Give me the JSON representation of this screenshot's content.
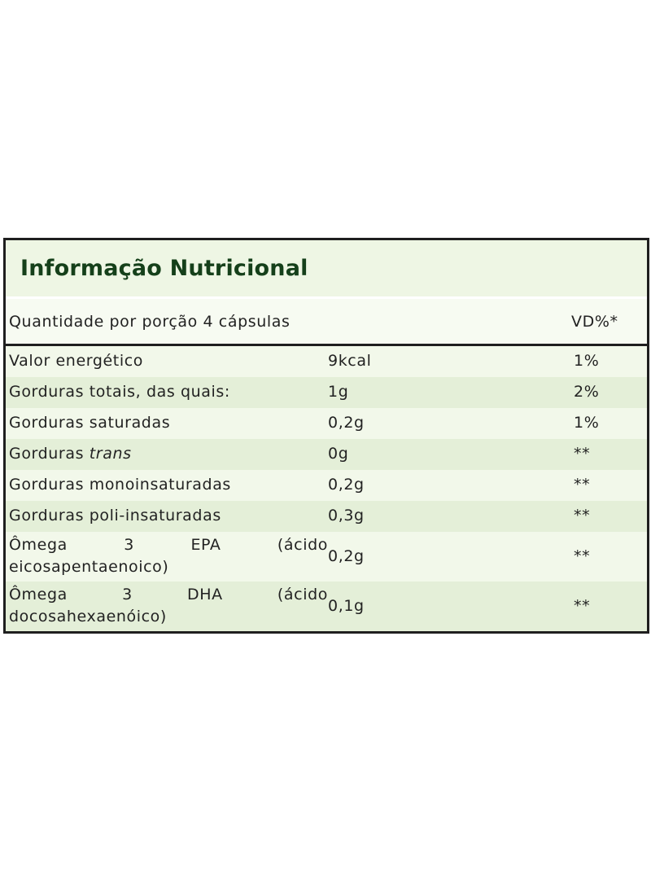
{
  "table": {
    "title": "Informação Nutricional",
    "serving_label": "Quantidade por porção 4 cápsulas",
    "vd_header": "VD%*",
    "rows": [
      {
        "name": "Valor energético",
        "amount": "9kcal",
        "vd": "1%"
      },
      {
        "name": "Gorduras totais, das quais:",
        "amount": "1g",
        "vd": "2%"
      },
      {
        "name": "Gorduras saturadas",
        "amount": "0,2g",
        "vd": "1%"
      },
      {
        "name_prefix": "Gorduras",
        "name_italic": "trans",
        "amount": "0g",
        "vd": "**"
      },
      {
        "name": "Gorduras monoinsaturadas",
        "amount": "0,2g",
        "vd": "**"
      },
      {
        "name": "Gorduras poli-insaturadas",
        "amount": "0,3g",
        "vd": "**"
      },
      {
        "name_words": [
          "Ômega",
          "3",
          "EPA",
          "(ácido"
        ],
        "name_line2": "eicosapentaenoico)",
        "amount": "0,2g",
        "vd": "**"
      },
      {
        "name_words": [
          "Ômega",
          "3",
          "DHA",
          "(ácido"
        ],
        "name_line2": "docosahexaenóico)",
        "amount": "0,1g",
        "vd": "**"
      }
    ]
  }
}
